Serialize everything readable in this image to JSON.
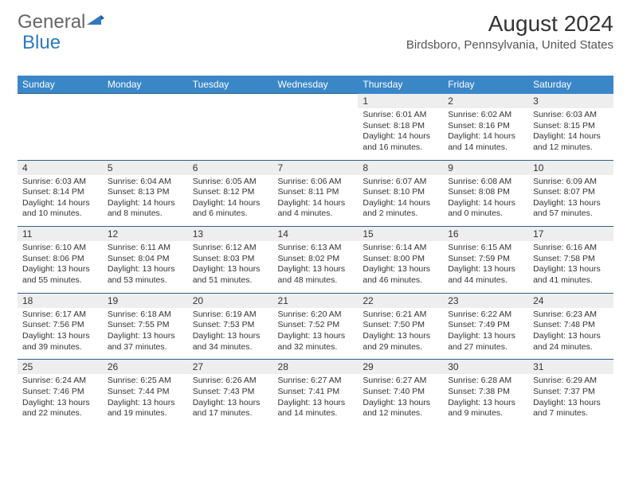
{
  "logo": {
    "part1": "General",
    "part2": "Blue"
  },
  "title": "August 2024",
  "location": "Birdsboro, Pennsylvania, United States",
  "colors": {
    "header_bg": "#3a87c8",
    "header_text": "#ffffff",
    "row_sep": "#2f5f8a",
    "daynum_bg": "#eeeeee",
    "text": "#333333",
    "logo_gray": "#666666",
    "logo_blue": "#2f79c2",
    "page_bg": "#ffffff"
  },
  "weekdays": [
    "Sunday",
    "Monday",
    "Tuesday",
    "Wednesday",
    "Thursday",
    "Friday",
    "Saturday"
  ],
  "first_weekday_index": 4,
  "days": [
    {
      "n": 1,
      "sr": "6:01 AM",
      "ss": "8:18 PM",
      "dl": "14 hours and 16 minutes."
    },
    {
      "n": 2,
      "sr": "6:02 AM",
      "ss": "8:16 PM",
      "dl": "14 hours and 14 minutes."
    },
    {
      "n": 3,
      "sr": "6:03 AM",
      "ss": "8:15 PM",
      "dl": "14 hours and 12 minutes."
    },
    {
      "n": 4,
      "sr": "6:03 AM",
      "ss": "8:14 PM",
      "dl": "14 hours and 10 minutes."
    },
    {
      "n": 5,
      "sr": "6:04 AM",
      "ss": "8:13 PM",
      "dl": "14 hours and 8 minutes."
    },
    {
      "n": 6,
      "sr": "6:05 AM",
      "ss": "8:12 PM",
      "dl": "14 hours and 6 minutes."
    },
    {
      "n": 7,
      "sr": "6:06 AM",
      "ss": "8:11 PM",
      "dl": "14 hours and 4 minutes."
    },
    {
      "n": 8,
      "sr": "6:07 AM",
      "ss": "8:10 PM",
      "dl": "14 hours and 2 minutes."
    },
    {
      "n": 9,
      "sr": "6:08 AM",
      "ss": "8:08 PM",
      "dl": "14 hours and 0 minutes."
    },
    {
      "n": 10,
      "sr": "6:09 AM",
      "ss": "8:07 PM",
      "dl": "13 hours and 57 minutes."
    },
    {
      "n": 11,
      "sr": "6:10 AM",
      "ss": "8:06 PM",
      "dl": "13 hours and 55 minutes."
    },
    {
      "n": 12,
      "sr": "6:11 AM",
      "ss": "8:04 PM",
      "dl": "13 hours and 53 minutes."
    },
    {
      "n": 13,
      "sr": "6:12 AM",
      "ss": "8:03 PM",
      "dl": "13 hours and 51 minutes."
    },
    {
      "n": 14,
      "sr": "6:13 AM",
      "ss": "8:02 PM",
      "dl": "13 hours and 48 minutes."
    },
    {
      "n": 15,
      "sr": "6:14 AM",
      "ss": "8:00 PM",
      "dl": "13 hours and 46 minutes."
    },
    {
      "n": 16,
      "sr": "6:15 AM",
      "ss": "7:59 PM",
      "dl": "13 hours and 44 minutes."
    },
    {
      "n": 17,
      "sr": "6:16 AM",
      "ss": "7:58 PM",
      "dl": "13 hours and 41 minutes."
    },
    {
      "n": 18,
      "sr": "6:17 AM",
      "ss": "7:56 PM",
      "dl": "13 hours and 39 minutes."
    },
    {
      "n": 19,
      "sr": "6:18 AM",
      "ss": "7:55 PM",
      "dl": "13 hours and 37 minutes."
    },
    {
      "n": 20,
      "sr": "6:19 AM",
      "ss": "7:53 PM",
      "dl": "13 hours and 34 minutes."
    },
    {
      "n": 21,
      "sr": "6:20 AM",
      "ss": "7:52 PM",
      "dl": "13 hours and 32 minutes."
    },
    {
      "n": 22,
      "sr": "6:21 AM",
      "ss": "7:50 PM",
      "dl": "13 hours and 29 minutes."
    },
    {
      "n": 23,
      "sr": "6:22 AM",
      "ss": "7:49 PM",
      "dl": "13 hours and 27 minutes."
    },
    {
      "n": 24,
      "sr": "6:23 AM",
      "ss": "7:48 PM",
      "dl": "13 hours and 24 minutes."
    },
    {
      "n": 25,
      "sr": "6:24 AM",
      "ss": "7:46 PM",
      "dl": "13 hours and 22 minutes."
    },
    {
      "n": 26,
      "sr": "6:25 AM",
      "ss": "7:44 PM",
      "dl": "13 hours and 19 minutes."
    },
    {
      "n": 27,
      "sr": "6:26 AM",
      "ss": "7:43 PM",
      "dl": "13 hours and 17 minutes."
    },
    {
      "n": 28,
      "sr": "6:27 AM",
      "ss": "7:41 PM",
      "dl": "13 hours and 14 minutes."
    },
    {
      "n": 29,
      "sr": "6:27 AM",
      "ss": "7:40 PM",
      "dl": "13 hours and 12 minutes."
    },
    {
      "n": 30,
      "sr": "6:28 AM",
      "ss": "7:38 PM",
      "dl": "13 hours and 9 minutes."
    },
    {
      "n": 31,
      "sr": "6:29 AM",
      "ss": "7:37 PM",
      "dl": "13 hours and 7 minutes."
    }
  ],
  "labels": {
    "sunrise": "Sunrise:",
    "sunset": "Sunset:",
    "daylight": "Daylight:"
  }
}
